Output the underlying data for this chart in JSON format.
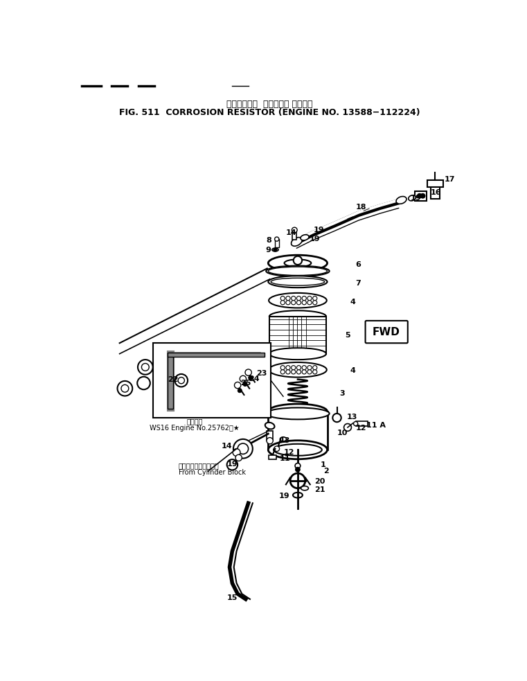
{
  "title_japanese": "コロージョン  レジスタ　 適用号機",
  "title_english": "FIG. 511  CORROSION RESISTOR (ENGINE NO. 13588−112224)",
  "bg_color": "#ffffff",
  "fig_width": 7.61,
  "fig_height": 9.83,
  "dpi": 100,
  "inset_label_line1": "適用号機",
  "inset_label_line2": "WS16 Engine No.25762～★",
  "cylinder_label_jp": "シリンダブロックから",
  "cylinder_label_en": "From Cylinder Block",
  "fwd_text": "FWD"
}
